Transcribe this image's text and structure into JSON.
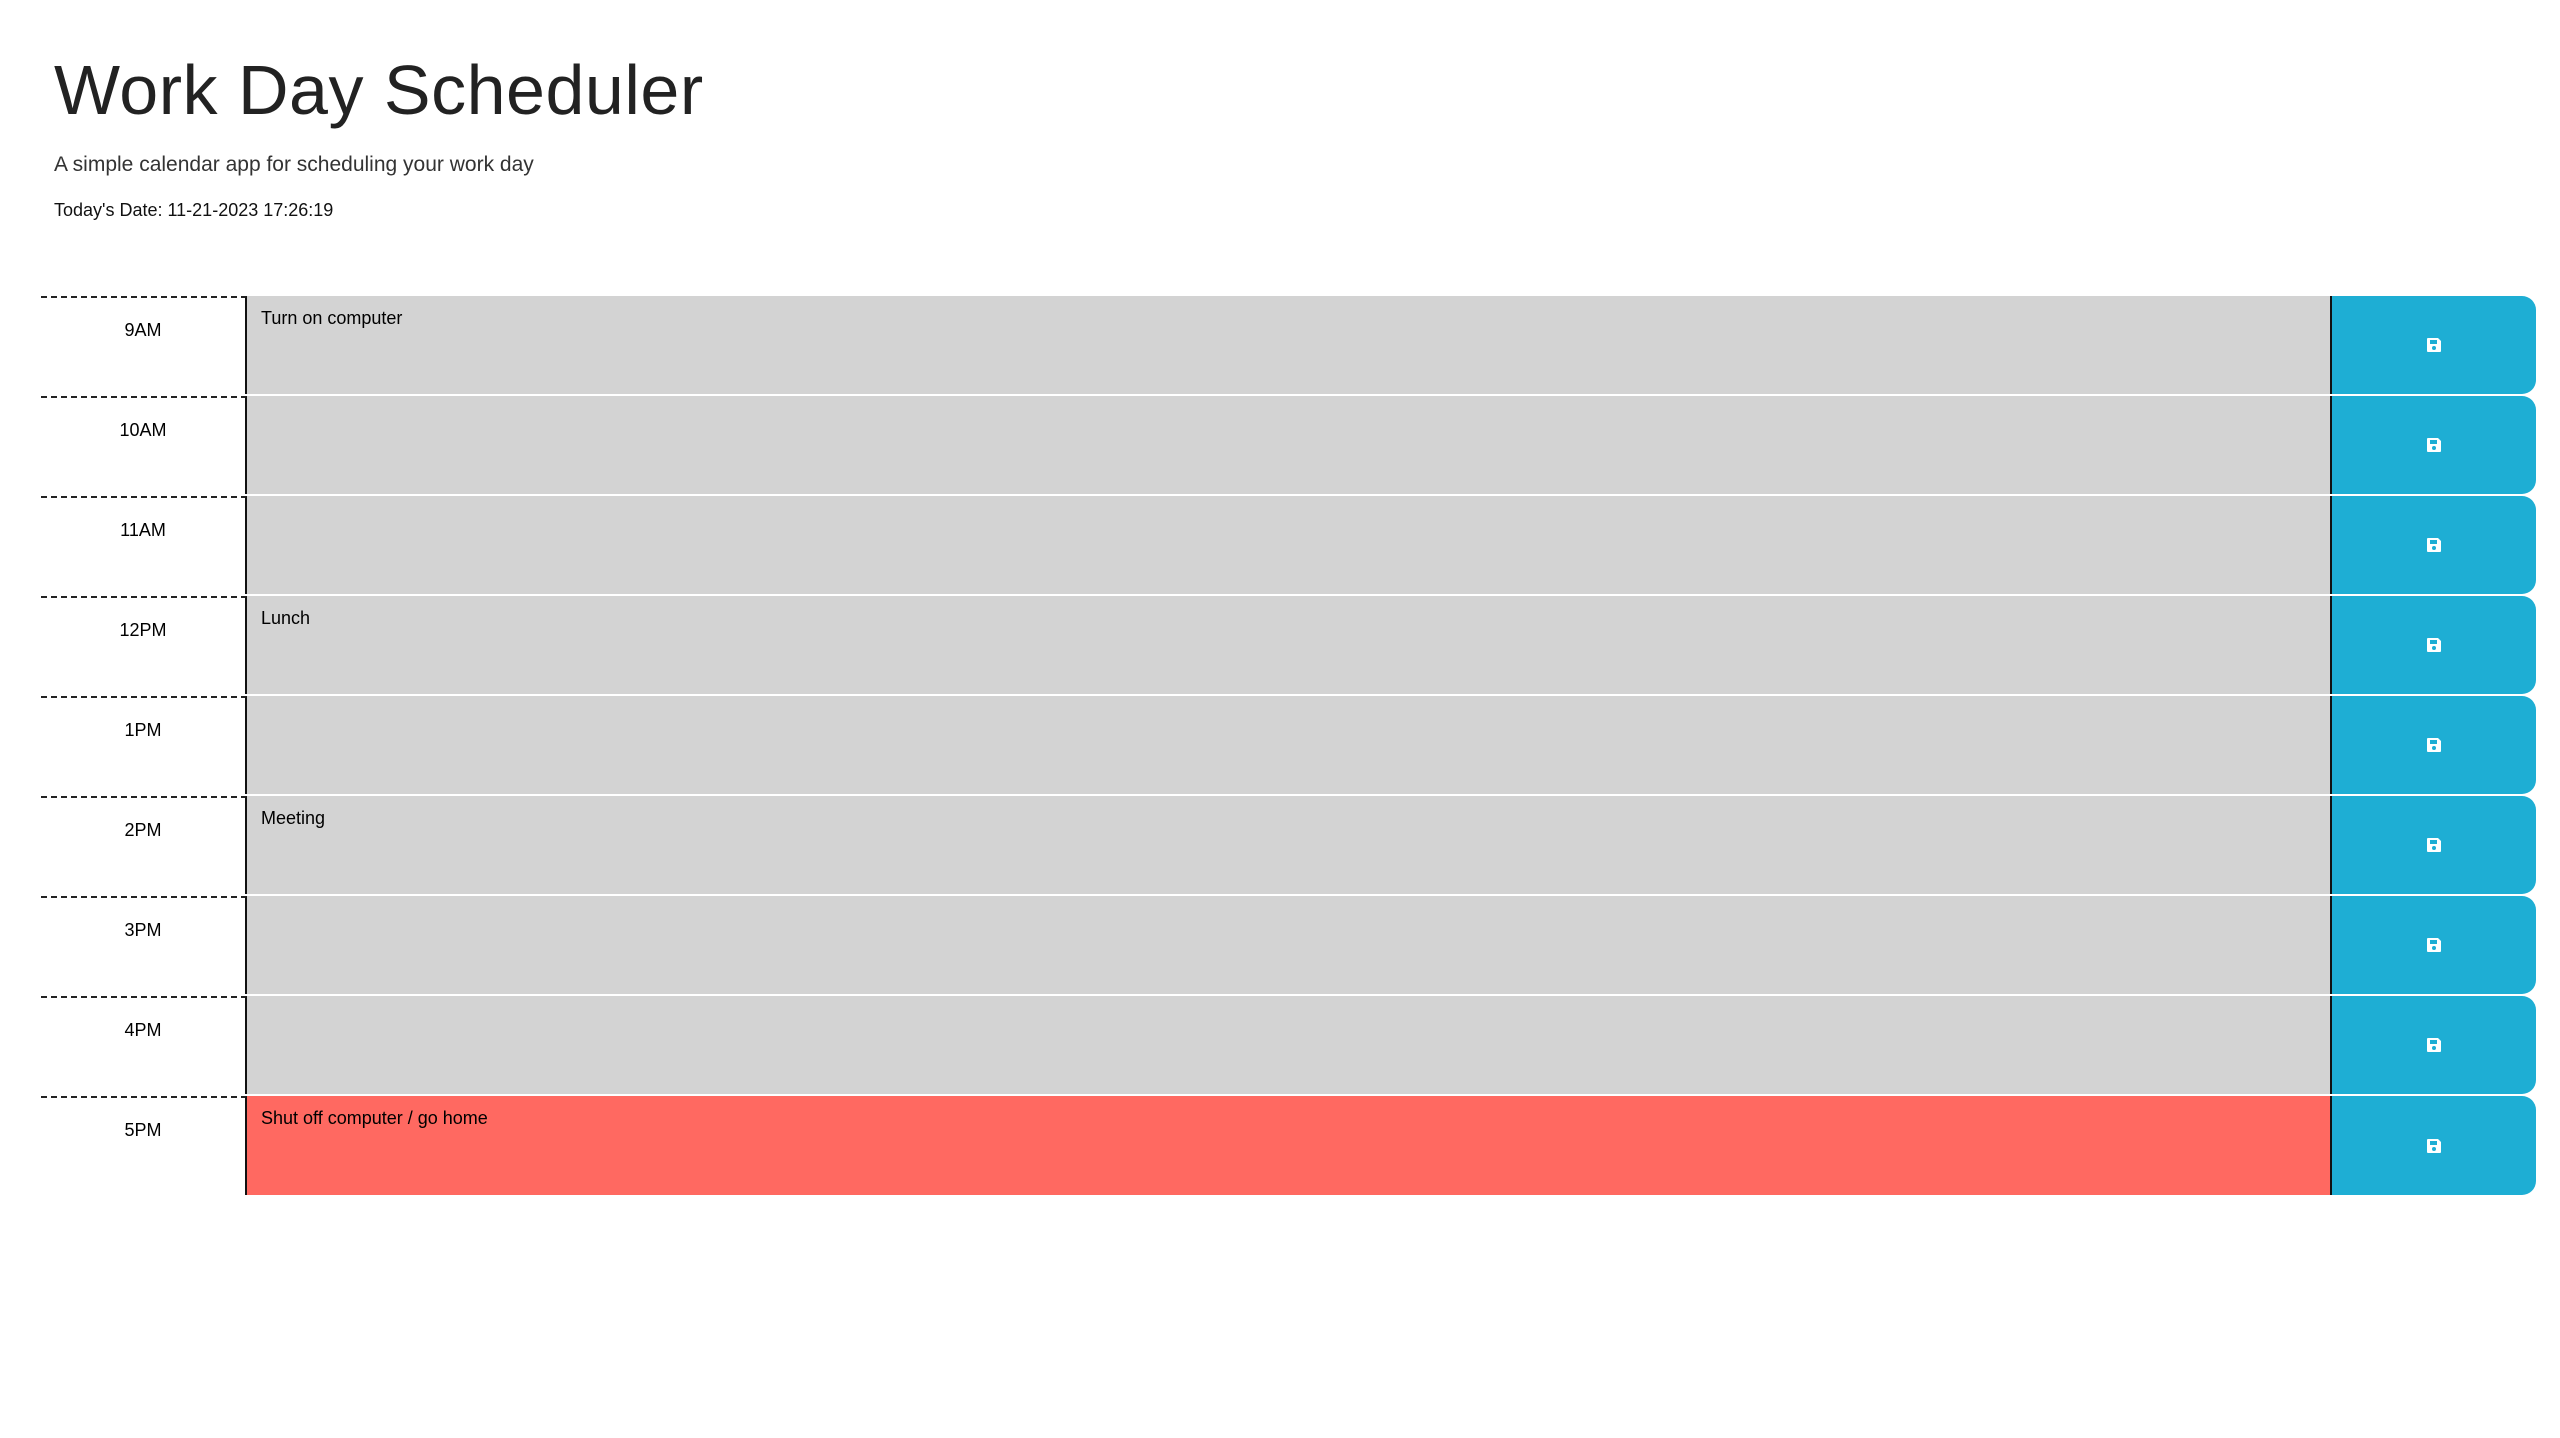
{
  "header": {
    "title": "Work Day Scheduler",
    "subtitle": "A simple calendar app for scheduling your work day",
    "date_text": "Today's Date: 11-21-2023 17:26:19"
  },
  "colors": {
    "past": "#d3d3d3",
    "present": "#ff6961",
    "save_button": "#1eaed4"
  },
  "rows": [
    {
      "hour": "9AM",
      "text": "Turn on computer",
      "state": "past",
      "icon": "save-icon"
    },
    {
      "hour": "10AM",
      "text": "",
      "state": "past",
      "icon": "save-icon"
    },
    {
      "hour": "11AM",
      "text": "",
      "state": "past",
      "icon": "save-icon"
    },
    {
      "hour": "12PM",
      "text": "Lunch",
      "state": "past",
      "icon": "save-icon"
    },
    {
      "hour": "1PM",
      "text": "",
      "state": "past",
      "icon": "save-icon"
    },
    {
      "hour": "2PM",
      "text": "Meeting",
      "state": "past",
      "icon": "save-icon"
    },
    {
      "hour": "3PM",
      "text": "",
      "state": "past",
      "icon": "save-icon"
    },
    {
      "hour": "4PM",
      "text": "",
      "state": "past",
      "icon": "save-icon"
    },
    {
      "hour": "5PM",
      "text": "Shut off computer / go home",
      "state": "present",
      "icon": "save-icon"
    }
  ]
}
